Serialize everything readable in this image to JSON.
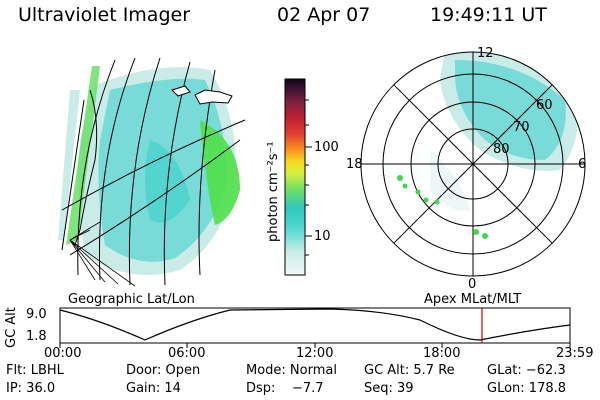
{
  "header": {
    "title": "Ultraviolet Imager",
    "date": "02 Apr 07",
    "time": "19:49:11 UT"
  },
  "geo_panel": {
    "label": "Geographic Lat/Lon"
  },
  "colorbar": {
    "unit_label": "photon cm⁻²s⁻¹",
    "ticks": [
      "100",
      "10"
    ]
  },
  "polar_panel": {
    "label": "Apex  MLat/MLT",
    "mlt_labels": {
      "top": "12",
      "left": "18",
      "right": "6",
      "bottom": "0"
    },
    "lat_labels": [
      "60",
      "70",
      "80"
    ]
  },
  "altitude_plot": {
    "ylabel": "GC Alt",
    "yticks": [
      "9.0",
      "1.8"
    ],
    "xticks": [
      "00:00",
      "06:00",
      "12:00",
      "18:00",
      "23:59"
    ],
    "current_time_marker": "19:49"
  },
  "footer": {
    "row1": {
      "flt": "Flt: LBHL",
      "door": "Door: Open",
      "mode": "Mode: Normal",
      "gc_alt": "GC Alt: 5.7 Re",
      "glat": "GLat: −62.3"
    },
    "row2": {
      "ip": "IP: 36.0",
      "gain": "Gain: 14",
      "dsp": "Dsp:    −7.7",
      "seq": "Seq: 39",
      "glon": "GLon: 178.8"
    }
  },
  "colors": {
    "aurora_cyan": "#40d8d0",
    "aurora_light": "#bfe9e6",
    "aurora_green": "#40e040",
    "marker_red": "#c00000"
  }
}
